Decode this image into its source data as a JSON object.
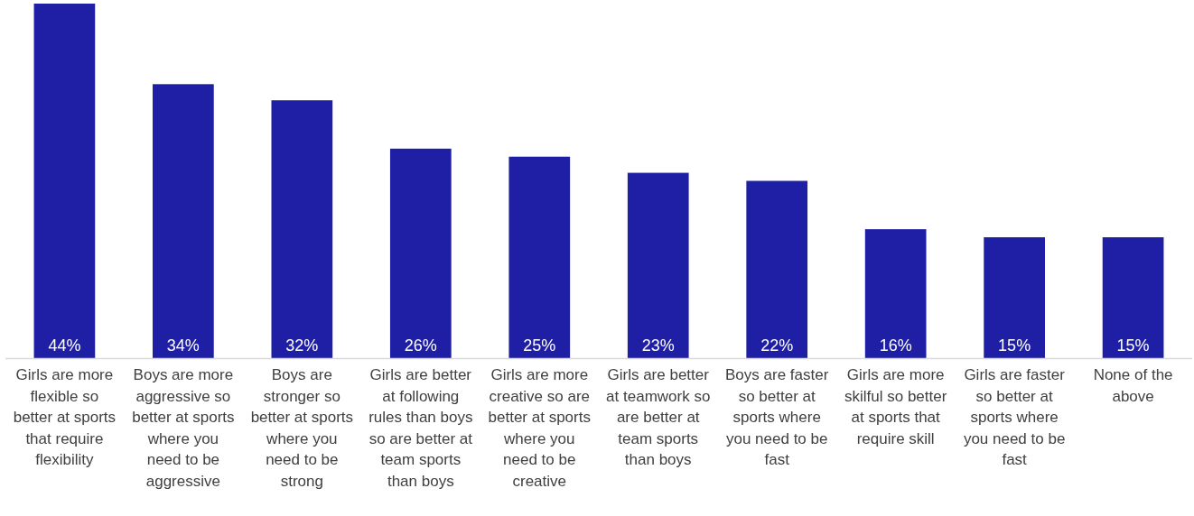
{
  "chart_data": {
    "type": "bar",
    "categories": [
      "Girls are more flexible so better at sports that require flexibility",
      "Boys are more aggressive so better at sports where you need to be aggressive",
      "Boys are stronger so better at sports where you need to be strong",
      "Girls are better at following rules than boys so are better at team sports than boys",
      "Girls are more creative so are better at sports where you need to be creative",
      "Girls are better at teamwork so are better at team sports than boys",
      "Boys are faster so better at sports where you need to be fast",
      "Girls are more skilful so better at sports that require skill",
      "Girls are faster so better at sports where you need to be fast",
      "None of the above"
    ],
    "values": [
      44,
      34,
      32,
      26,
      25,
      23,
      22,
      16,
      15,
      15
    ],
    "value_labels": [
      "44%",
      "34%",
      "32%",
      "26%",
      "25%",
      "23%",
      "22%",
      "16%",
      "15%",
      "15%"
    ],
    "color": "#1f1fa5"
  }
}
